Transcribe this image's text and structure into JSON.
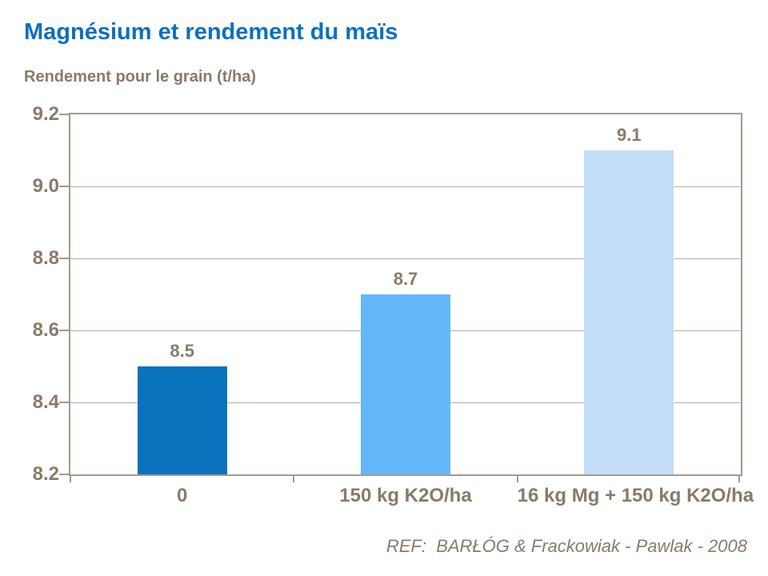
{
  "title": "Magnésium et rendement du maïs",
  "subtitle": "Rendement pour le grain (t/ha)",
  "reference": "REF:  BARŁÓG & Frackowiak - Pawlak - 2008",
  "colors": {
    "title_blue": "#0C70C0",
    "text_brown": "#8A7A67",
    "axis": "#A69A8C",
    "gridline": "#B9AEA0"
  },
  "chart_data": {
    "type": "bar",
    "title": "Magnésium et rendement du maïs",
    "axis_title": "Rendement pour le grain (t/ha)",
    "categories": [
      "0",
      "150 kg K2O/ha",
      "16 kg Mg + 150 kg K2O/ha"
    ],
    "values": [
      8.5,
      8.7,
      9.1
    ],
    "data_labels": [
      "8.5",
      "8.7",
      "9.1"
    ],
    "bar_colors": [
      "#0A71BD",
      "#63B8FA",
      "#C3DEF7"
    ],
    "ylim": [
      8.2,
      9.2
    ],
    "yticks": [
      "8.2",
      "8.4",
      "8.6",
      "8.8",
      "9.0",
      "9.2"
    ],
    "grid": true,
    "legend": false,
    "xlabel": "",
    "ylabel": "Rendement pour le grain (t/ha)"
  }
}
